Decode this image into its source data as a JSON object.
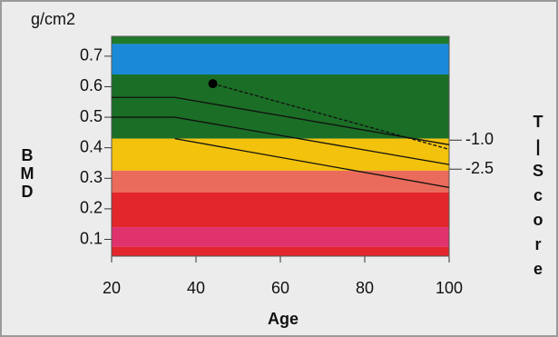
{
  "chart_data": {
    "type": "line",
    "y_unit": "g/cm2",
    "ylabel": [
      "B",
      "M",
      "D"
    ],
    "xlabel": "Age",
    "y2label": [
      "T",
      "|",
      "S",
      "c",
      "o",
      "r",
      "e"
    ],
    "xlim": [
      20,
      100
    ],
    "xticks": [
      20,
      40,
      60,
      80,
      100
    ],
    "ylim": [
      0.045,
      0.765
    ],
    "yticks": [
      0.1,
      0.2,
      0.3,
      0.4,
      0.5,
      0.6,
      0.7
    ],
    "y2lim": [
      -7.0,
      4.37
    ],
    "y2ticks": [
      {
        "value": -1,
        "label": "-1.0"
      },
      -2.5
    ],
    "bands": [
      {
        "from": 0.74,
        "to": 0.765,
        "color": "#1f7a2a"
      },
      {
        "from": 0.64,
        "to": 0.74,
        "color": "#1a8ad8"
      },
      {
        "from": 0.43,
        "to": 0.64,
        "color": "#1b6e26"
      },
      {
        "from": 0.325,
        "to": 0.43,
        "color": "#f2c20c"
      },
      {
        "from": 0.254,
        "to": 0.325,
        "color": "#ea6b5c"
      },
      {
        "from": 0.14,
        "to": 0.254,
        "color": "#e2262b"
      },
      {
        "from": 0.075,
        "to": 0.14,
        "color": "#e0336e"
      },
      {
        "from": 0.045,
        "to": 0.075,
        "color": "#e2262b"
      }
    ],
    "series": [
      {
        "x": [
          20,
          35,
          100
        ],
        "values": [
          0.565,
          0.565,
          0.41
        ],
        "color": "#111111",
        "dash": false
      },
      {
        "x": [
          20,
          35,
          100
        ],
        "values": [
          0.5,
          0.5,
          0.345
        ],
        "color": "#111111",
        "dash": false
      },
      {
        "x": [
          35,
          100
        ],
        "values": [
          0.43,
          0.27
        ],
        "color": "#111111",
        "dash": false
      },
      {
        "x": [
          44,
          100
        ],
        "values": [
          0.61,
          0.395
        ],
        "color": "#111111",
        "dash": true
      }
    ],
    "point": {
      "x": 44,
      "value": 0.61,
      "color": "#000000"
    }
  }
}
